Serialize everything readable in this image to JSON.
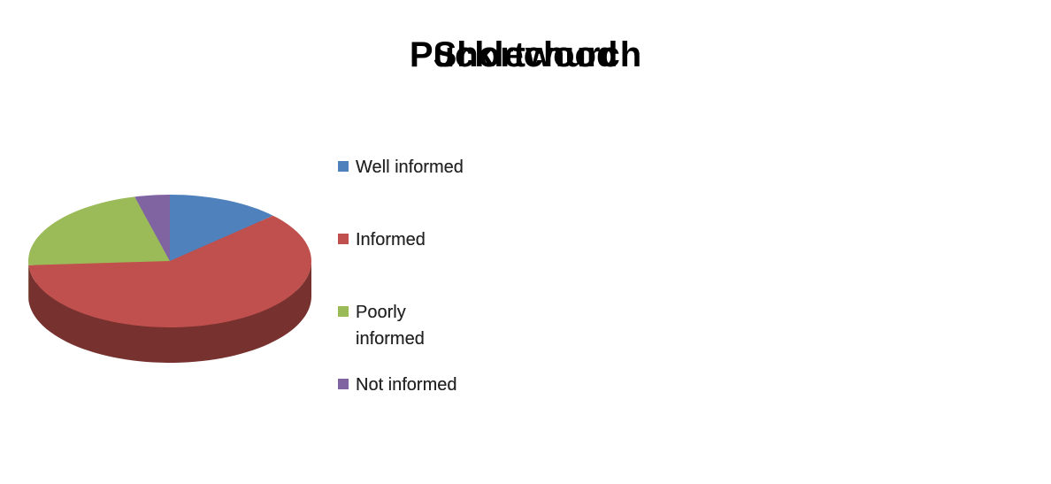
{
  "chart_data": [
    {
      "type": "pie",
      "title": "Pucklechurch",
      "categories": [
        "Well informed",
        "Informed",
        "Poorly informed",
        "Not informed"
      ],
      "values": [
        18,
        61,
        19,
        2
      ],
      "colors": [
        "#4f81bd",
        "#c0504d",
        "#9bbb59",
        "#8064a2"
      ],
      "legend": "right"
    },
    {
      "type": "pie",
      "title": "Shortwood",
      "categories": [
        "Well informed",
        "Informed",
        "Poorly informed",
        "Not informed"
      ],
      "values": [
        13,
        61,
        22,
        4
      ],
      "colors": [
        "#4f81bd",
        "#c0504d",
        "#9bbb59",
        "#8064a2"
      ],
      "legend": "right"
    }
  ]
}
